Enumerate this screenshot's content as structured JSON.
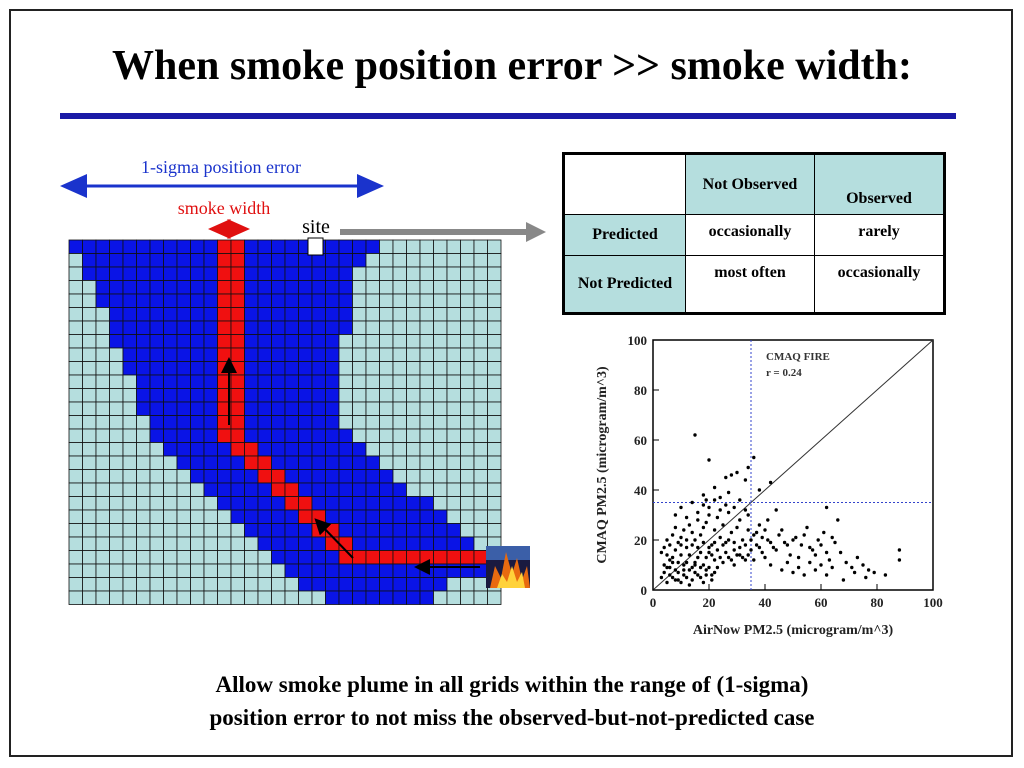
{
  "slide": {
    "title": "When smoke position error >> smoke width:",
    "caption_line1": "Allow smoke plume in all grids within the range of (1-sigma)",
    "caption_line2": "position error to not miss the observed-but-not-predicted case"
  },
  "diagram": {
    "position_error_label": "1-sigma position error",
    "smoke_width_label": "smoke width",
    "site_label": "site",
    "colors": {
      "background_cell": "#b5dede",
      "plume_range": "#0a14e6",
      "smoke": "#f01010",
      "arrow_blue": "#1a33cc",
      "arrow_red": "#e01010",
      "pointer": "#888888"
    },
    "fire_icon": "fire-image"
  },
  "matrix": {
    "col_headers": [
      "",
      "Not Observed",
      "Observed"
    ],
    "rows": [
      {
        "label": "Predicted",
        "cells": [
          "occasionally",
          "rarely"
        ]
      },
      {
        "label": "Not Predicted",
        "cells": [
          "most often",
          "occasionally"
        ]
      }
    ]
  },
  "chart_data": {
    "type": "scatter",
    "xlabel": "AirNow PM2.5 (microgram/m^3)",
    "ylabel": "CMAQ PM2.5 (microgram/m^3)",
    "xlim": [
      0,
      100
    ],
    "ylim": [
      0,
      100
    ],
    "x_ticks": [
      0,
      20,
      40,
      60,
      80,
      100
    ],
    "y_ticks": [
      0,
      20,
      40,
      60,
      80,
      100
    ],
    "annotation_line1": "CMAQ FIRE",
    "annotation_line2": "r = 0.24",
    "reference_lines": {
      "one_to_one": true,
      "vertical_x": 35,
      "horizontal_y": 35
    },
    "points": [
      [
        5,
        20
      ],
      [
        6,
        18
      ],
      [
        7,
        22
      ],
      [
        8,
        25
      ],
      [
        9,
        19
      ],
      [
        10,
        21
      ],
      [
        11,
        24
      ],
      [
        12,
        17
      ],
      [
        13,
        26
      ],
      [
        14,
        23
      ],
      [
        15,
        20
      ],
      [
        16,
        28
      ],
      [
        17,
        22
      ],
      [
        18,
        25
      ],
      [
        19,
        27
      ],
      [
        20,
        30
      ],
      [
        21,
        18
      ],
      [
        22,
        24
      ],
      [
        23,
        29
      ],
      [
        24,
        21
      ],
      [
        25,
        26
      ],
      [
        26,
        19
      ],
      [
        27,
        31
      ],
      [
        28,
        23
      ],
      [
        29,
        16
      ],
      [
        30,
        25
      ],
      [
        31,
        28
      ],
      [
        32,
        20
      ],
      [
        33,
        32
      ],
      [
        34,
        24
      ],
      [
        4,
        10
      ],
      [
        6,
        12
      ],
      [
        8,
        8
      ],
      [
        10,
        14
      ],
      [
        12,
        11
      ],
      [
        14,
        9
      ],
      [
        16,
        13
      ],
      [
        18,
        10
      ],
      [
        20,
        15
      ],
      [
        22,
        12
      ],
      [
        5,
        3
      ],
      [
        7,
        5
      ],
      [
        9,
        4
      ],
      [
        11,
        6
      ],
      [
        13,
        2
      ],
      [
        15,
        7
      ],
      [
        17,
        5
      ],
      [
        19,
        8
      ],
      [
        21,
        6
      ],
      [
        23,
        9
      ],
      [
        25,
        11
      ],
      [
        27,
        13
      ],
      [
        29,
        10
      ],
      [
        31,
        14
      ],
      [
        33,
        12
      ],
      [
        35,
        16
      ],
      [
        37,
        18
      ],
      [
        39,
        15
      ],
      [
        41,
        20
      ],
      [
        43,
        17
      ],
      [
        45,
        22
      ],
      [
        47,
        19
      ],
      [
        49,
        14
      ],
      [
        51,
        21
      ],
      [
        53,
        18
      ],
      [
        55,
        25
      ],
      [
        57,
        16
      ],
      [
        59,
        20
      ],
      [
        61,
        23
      ],
      [
        63,
        12
      ],
      [
        65,
        19
      ],
      [
        67,
        15
      ],
      [
        69,
        11
      ],
      [
        71,
        9
      ],
      [
        73,
        13
      ],
      [
        75,
        10
      ],
      [
        77,
        8
      ],
      [
        79,
        7
      ],
      [
        83,
        6
      ],
      [
        88,
        16
      ],
      [
        88,
        12
      ],
      [
        41,
        28
      ],
      [
        44,
        32
      ],
      [
        38,
        26
      ],
      [
        36,
        22
      ],
      [
        40,
        13
      ],
      [
        42,
        10
      ],
      [
        46,
        8
      ],
      [
        48,
        11
      ],
      [
        50,
        7
      ],
      [
        52,
        9
      ],
      [
        54,
        6
      ],
      [
        56,
        11
      ],
      [
        58,
        8
      ],
      [
        60,
        10
      ],
      [
        62,
        6
      ],
      [
        64,
        9
      ],
      [
        68,
        4
      ],
      [
        72,
        7
      ],
      [
        76,
        5
      ],
      [
        15,
        62
      ],
      [
        20,
        52
      ],
      [
        28,
        46
      ],
      [
        30,
        47
      ],
      [
        34,
        49
      ],
      [
        33,
        44
      ],
      [
        26,
        45
      ],
      [
        22,
        41
      ],
      [
        18,
        38
      ],
      [
        36,
        53
      ],
      [
        38,
        40
      ],
      [
        42,
        43
      ],
      [
        62,
        33
      ],
      [
        66,
        28
      ],
      [
        19,
        36
      ],
      [
        24,
        37
      ],
      [
        27,
        39
      ],
      [
        29,
        33
      ],
      [
        31,
        36
      ],
      [
        34,
        30
      ],
      [
        8,
        30
      ],
      [
        10,
        33
      ],
      [
        12,
        29
      ],
      [
        14,
        35
      ],
      [
        16,
        31
      ],
      [
        18,
        34
      ],
      [
        20,
        33
      ],
      [
        22,
        36
      ],
      [
        24,
        32
      ],
      [
        26,
        34
      ],
      [
        3,
        15
      ],
      [
        4,
        17
      ],
      [
        5,
        14
      ],
      [
        6,
        9
      ],
      [
        7,
        13
      ],
      [
        8,
        16
      ],
      [
        9,
        11
      ],
      [
        10,
        18
      ],
      [
        11,
        8
      ],
      [
        12,
        20
      ],
      [
        13,
        14
      ],
      [
        14,
        18
      ],
      [
        15,
        11
      ],
      [
        16,
        17
      ],
      [
        17,
        15
      ],
      [
        18,
        19
      ],
      [
        19,
        13
      ],
      [
        20,
        17
      ],
      [
        21,
        14
      ],
      [
        22,
        19
      ],
      [
        23,
        16
      ],
      [
        24,
        13
      ],
      [
        25,
        18
      ],
      [
        26,
        15
      ],
      [
        27,
        20
      ],
      [
        28,
        12
      ],
      [
        29,
        19
      ],
      [
        30,
        14
      ],
      [
        31,
        17
      ],
      [
        32,
        13
      ],
      [
        33,
        18
      ],
      [
        34,
        14
      ],
      [
        35,
        20
      ],
      [
        36,
        12
      ],
      [
        37,
        23
      ],
      [
        38,
        17
      ],
      [
        39,
        21
      ],
      [
        40,
        24
      ],
      [
        42,
        19
      ],
      [
        44,
        16
      ],
      [
        46,
        24
      ],
      [
        48,
        18
      ],
      [
        50,
        20
      ],
      [
        52,
        13
      ],
      [
        54,
        22
      ],
      [
        56,
        17
      ],
      [
        58,
        14
      ],
      [
        60,
        18
      ],
      [
        62,
        15
      ],
      [
        64,
        21
      ],
      [
        3,
        5
      ],
      [
        4,
        7
      ],
      [
        5,
        9
      ],
      [
        6,
        6
      ],
      [
        7,
        11
      ],
      [
        8,
        4
      ],
      [
        9,
        7
      ],
      [
        10,
        3
      ],
      [
        11,
        10
      ],
      [
        12,
        5
      ],
      [
        13,
        8
      ],
      [
        14,
        4
      ],
      [
        15,
        10
      ],
      [
        16,
        6
      ],
      [
        17,
        9
      ],
      [
        18,
        3
      ],
      [
        19,
        6
      ],
      [
        20,
        9
      ],
      [
        21,
        4
      ],
      [
        22,
        7
      ]
    ]
  }
}
